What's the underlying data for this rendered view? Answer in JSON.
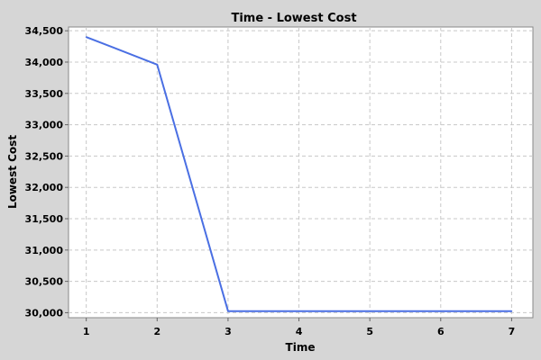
{
  "chart_data": {
    "type": "line",
    "title": "Time  - Lowest Cost",
    "xlabel": "Time",
    "ylabel": "Lowest Cost",
    "x": [
      1,
      2,
      3,
      4,
      5,
      6,
      7
    ],
    "series": [
      {
        "values": [
          34400,
          33960,
          30025,
          30025,
          30025,
          30025,
          30025
        ],
        "color": "#4a6fe3"
      }
    ],
    "xlim": [
      0.75,
      7.3
    ],
    "ylim": [
      29920,
      34560
    ],
    "x_ticks": [
      1,
      2,
      3,
      4,
      5,
      6,
      7
    ],
    "y_ticks": [
      30000,
      30500,
      31000,
      31500,
      32000,
      32500,
      33000,
      33500,
      34000,
      34500
    ],
    "y_tick_labels": [
      "30,000",
      "30,500",
      "31,000",
      "31,500",
      "32,000",
      "32,500",
      "33,000",
      "33,500",
      "34,000",
      "34,500"
    ],
    "grid": true,
    "legend": "none",
    "background_color": "#d6d6d6",
    "plot_background_color": "#ffffff",
    "grid_color": "#c8c8c8"
  }
}
